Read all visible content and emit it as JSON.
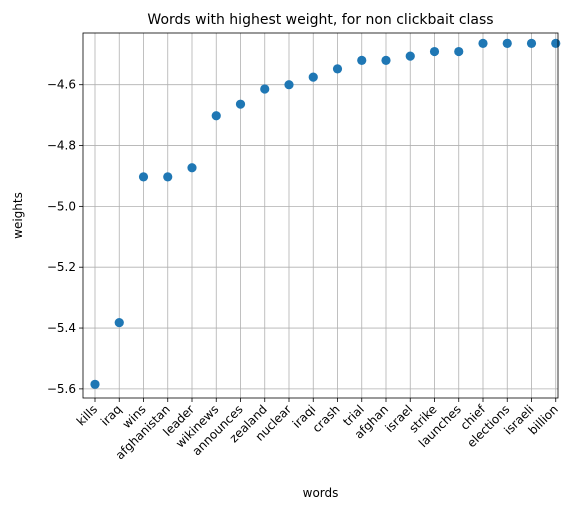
{
  "chart_data": {
    "type": "scatter",
    "title": "Words with highest weight, for non clickbait class",
    "xlabel": "words",
    "ylabel": "weights",
    "categories": [
      "kills",
      "iraq",
      "wins",
      "afghanistan",
      "leader",
      "wikinews",
      "announces",
      "zealand",
      "nuclear",
      "iraqi",
      "crash",
      "trial",
      "afghan",
      "israel",
      "strike",
      "launches",
      "chief",
      "elections",
      "israeli",
      "billion"
    ],
    "values": [
      -5.585,
      -5.382,
      -4.903,
      -4.903,
      -4.873,
      -4.702,
      -4.664,
      -4.614,
      -4.6,
      -4.575,
      -4.548,
      -4.52,
      -4.52,
      -4.506,
      -4.491,
      -4.491,
      -4.464,
      -4.464,
      -4.464,
      -4.464
    ],
    "ylim": [
      -5.63,
      -4.43
    ],
    "yticks": [
      -5.6,
      -5.4,
      -5.2,
      -5.0,
      -4.8,
      -4.6
    ],
    "ytick_labels": [
      "−5.6",
      "−5.4",
      "−5.2",
      "−5.0",
      "−4.8",
      "−4.6"
    ],
    "grid": true,
    "marker_color": "#1f77b4"
  }
}
